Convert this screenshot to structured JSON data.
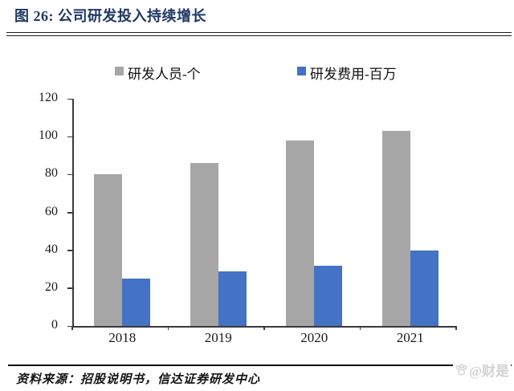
{
  "page": {
    "title": "图 26: 公司研发投入持续增长",
    "source_note": "资料来源：招股说明书，信达证券研发中心",
    "watermark_text": "@财是",
    "colors": {
      "title": "#1f3864",
      "axis": "#3a3a3a",
      "bar_gray": "#a6a6a6",
      "bar_blue": "#4472c4",
      "watermark": "#d2d2d2"
    }
  },
  "chart_data": {
    "type": "bar",
    "title": "图 26: 公司研发投入持续增长",
    "categories": [
      "2018",
      "2019",
      "2020",
      "2021"
    ],
    "series": [
      {
        "name": "研发人员-个",
        "color": "#a6a6a6",
        "values": [
          80,
          86,
          98,
          103
        ]
      },
      {
        "name": "研发费用-百万",
        "color": "#4472c4",
        "values": [
          25,
          29,
          32,
          40
        ]
      }
    ],
    "xlabel": "",
    "ylabel": "",
    "ylim": [
      0,
      120
    ],
    "ytick_step": 20,
    "yticks": [
      0,
      20,
      40,
      60,
      80,
      100,
      120
    ],
    "grid": false,
    "legend_position": "top"
  }
}
